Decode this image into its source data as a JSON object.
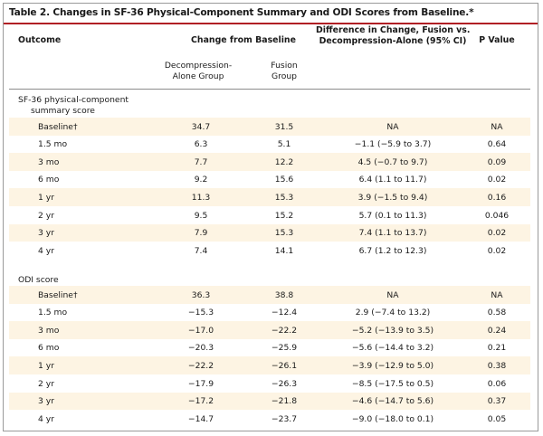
{
  "table": {
    "title": "Table 2. Changes in SF-36 Physical-Component Summary and ODI Scores from Baseline.*",
    "headers": {
      "outcome": "Outcome",
      "change_from_baseline": "Change from Baseline",
      "difference_line1": "Difference in Change, Fusion vs.",
      "difference_line2": "Decompression-Alone (95% CI)",
      "p_value": "P Value",
      "group_decomp_line1": "Decompression-",
      "group_decomp_line2": "Alone Group",
      "group_fusion_line1": "Fusion",
      "group_fusion_line2": "Group"
    },
    "sections": [
      {
        "label_line1": "SF-36 physical-component",
        "label_line2": "summary score",
        "rows": [
          {
            "label": "Baseline†",
            "decomp": "34.7",
            "fusion": "31.5",
            "diff": "NA",
            "p": "NA"
          },
          {
            "label": "1.5 mo",
            "decomp": "6.3",
            "fusion": "5.1",
            "diff": "−1.1 (−5.9 to 3.7)",
            "p": "0.64"
          },
          {
            "label": "3 mo",
            "decomp": "7.7",
            "fusion": "12.2",
            "diff": "4.5 (−0.7 to 9.7)",
            "p": "0.09"
          },
          {
            "label": "6 mo",
            "decomp": "9.2",
            "fusion": "15.6",
            "diff": "6.4 (1.1 to 11.7)",
            "p": "0.02"
          },
          {
            "label": "1 yr",
            "decomp": "11.3",
            "fusion": "15.3",
            "diff": "3.9 (−1.5 to 9.4)",
            "p": "0.16"
          },
          {
            "label": "2 yr",
            "decomp": "9.5",
            "fusion": "15.2",
            "diff": "5.7 (0.1 to 11.3)",
            "p": "0.046"
          },
          {
            "label": "3 yr",
            "decomp": "7.9",
            "fusion": "15.3",
            "diff": "7.4 (1.1 to 13.7)",
            "p": "0.02"
          },
          {
            "label": "4 yr",
            "decomp": "7.4",
            "fusion": "14.1",
            "diff": "6.7 (1.2 to 12.3)",
            "p": "0.02"
          }
        ]
      },
      {
        "label_line1": "ODI score",
        "label_line2": "",
        "rows": [
          {
            "label": "Baseline†",
            "decomp": "36.3",
            "fusion": "38.8",
            "diff": "NA",
            "p": "NA"
          },
          {
            "label": "1.5 mo",
            "decomp": "−15.3",
            "fusion": "−12.4",
            "diff": "2.9 (−7.4 to 13.2)",
            "p": "0.58"
          },
          {
            "label": "3 mo",
            "decomp": "−17.0",
            "fusion": "−22.2",
            "diff": "−5.2 (−13.9 to 3.5)",
            "p": "0.24"
          },
          {
            "label": "6 mo",
            "decomp": "−20.3",
            "fusion": "−25.9",
            "diff": "−5.6 (−14.4 to 3.2)",
            "p": "0.21"
          },
          {
            "label": "1 yr",
            "decomp": "−22.2",
            "fusion": "−26.1",
            "diff": "−3.9 (−12.9 to 5.0)",
            "p": "0.38"
          },
          {
            "label": "2 yr",
            "decomp": "−17.9",
            "fusion": "−26.3",
            "diff": "−8.5 (−17.5 to 0.5)",
            "p": "0.06"
          },
          {
            "label": "3 yr",
            "decomp": "−17.2",
            "fusion": "−21.8",
            "diff": "−4.6 (−14.7 to 5.6)",
            "p": "0.37"
          },
          {
            "label": "4 yr",
            "decomp": "−14.7",
            "fusion": "−23.7",
            "diff": "−9.0 (−18.0 to 0.1)",
            "p": "0.05"
          }
        ]
      }
    ]
  },
  "colors": {
    "accent_rule": "#b11f24",
    "row_shade": "#fdf4e3"
  }
}
